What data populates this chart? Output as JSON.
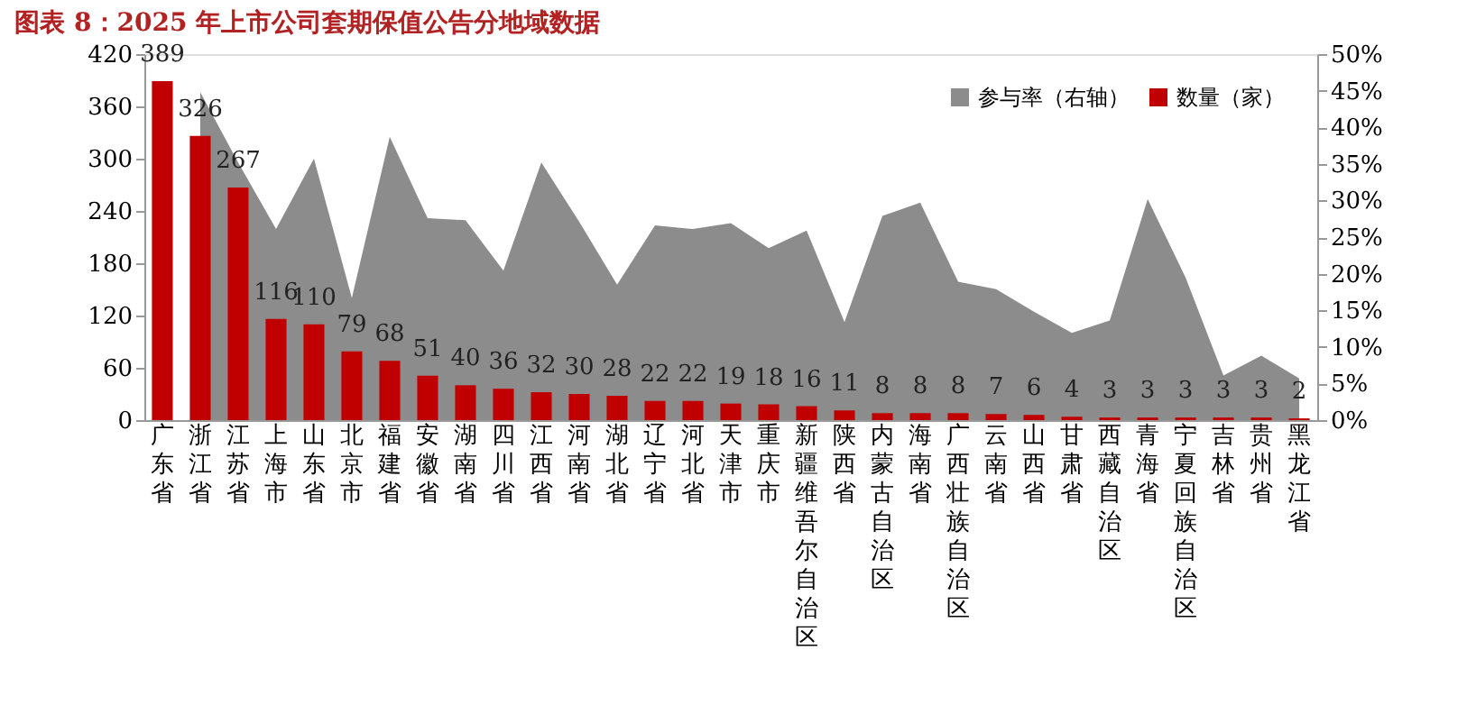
{
  "chart_data": {
    "type": "bar",
    "title": "图表 8：2025 年上市公司套期保值公告分地域数据",
    "categories": [
      "广东省",
      "浙江省",
      "江苏省",
      "上海市",
      "山东省",
      "北京市",
      "福建省",
      "安徽省",
      "湖南省",
      "四川省",
      "江西省",
      "河南省",
      "湖北省",
      "辽宁省",
      "河北省",
      "天津市",
      "重庆市",
      "新疆维吾尔自治区",
      "陕西省",
      "内蒙古自治区",
      "海南省",
      "广西壮族自治区",
      "云南省",
      "山西省",
      "甘肃省",
      "西藏自治区",
      "青海省",
      "宁夏回族自治区",
      "吉林省",
      "贵州省",
      "黑龙江省"
    ],
    "series": [
      {
        "name": "参与率（右轴）",
        "type": "area",
        "axis": "y2",
        "color": "#8c8c8c",
        "values": [
          null,
          44.8,
          35.2,
          26.1,
          35.7,
          16.7,
          38.7,
          27.6,
          27.3,
          20.4,
          35.2,
          27.1,
          18.5,
          26.6,
          26.1,
          26.9,
          23.5,
          25.9,
          13.4,
          27.9,
          29.7,
          18.9,
          17.9,
          14.8,
          11.9,
          13.6,
          30.2,
          19.5,
          6.1,
          8.8,
          5.7
        ]
      },
      {
        "name": "数量（家）",
        "axis": "y",
        "color": "#c00000",
        "values": [
          389,
          326,
          267,
          116,
          110,
          79,
          68,
          51,
          40,
          36,
          32,
          30,
          28,
          22,
          22,
          19,
          18,
          16,
          11,
          8,
          8,
          8,
          7,
          6,
          4,
          3,
          3,
          3,
          3,
          3,
          2
        ],
        "value_labels": [
          "389",
          "326",
          "267",
          "116",
          "110",
          "79",
          "68",
          "51",
          "40",
          "36",
          "32",
          "30",
          "28",
          "22",
          "22",
          "19",
          "18",
          "16",
          "11",
          "8",
          "8",
          "8",
          "7",
          "6",
          "4",
          "3",
          "3",
          "3",
          "3",
          "3",
          "2"
        ]
      }
    ],
    "ylim": [
      0,
      420
    ],
    "yticks": [
      0,
      60,
      120,
      180,
      240,
      300,
      360,
      420
    ],
    "y2lim": [
      0,
      50
    ],
    "y2ticks": [
      {
        "value": 0,
        "label": "0%"
      },
      {
        "value": 5,
        "label": "5%"
      },
      {
        "value": 10,
        "label": "10%"
      },
      {
        "value": 15,
        "label": "15%"
      },
      {
        "value": 20,
        "label": "20%"
      },
      {
        "value": 25,
        "label": "25%"
      },
      {
        "value": 30,
        "label": "30%"
      },
      {
        "value": 35,
        "label": "35%"
      },
      {
        "value": 40,
        "label": "40%"
      },
      {
        "value": 45,
        "label": "45%"
      },
      {
        "value": 50,
        "label": "50%"
      }
    ],
    "grid": false,
    "legend": "top right"
  }
}
